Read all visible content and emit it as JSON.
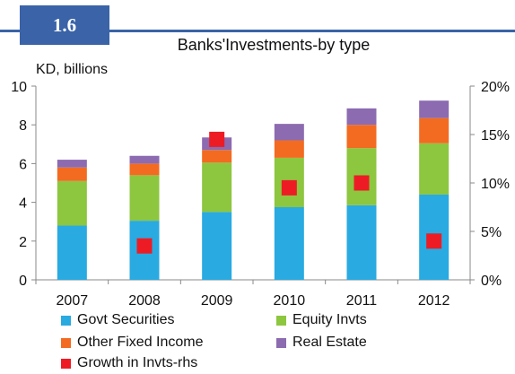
{
  "badge": "1.6",
  "chart_data": {
    "type": "bar",
    "stacked": true,
    "title": "Banks'Investments-by type",
    "ylabel": "KD, billions",
    "categories": [
      "2007",
      "2008",
      "2009",
      "2010",
      "2011",
      "2012"
    ],
    "ylim": [
      0,
      10
    ],
    "y_ticks": [
      "0",
      "2",
      "4",
      "6",
      "8",
      "10"
    ],
    "y2lim": [
      0,
      20
    ],
    "y2_ticks": [
      "0%",
      "5%",
      "10%",
      "15%",
      "20%"
    ],
    "series": [
      {
        "name": "Govt Securities",
        "color": "#29aae1",
        "values": [
          2.8,
          3.05,
          3.5,
          3.75,
          3.85,
          4.4
        ]
      },
      {
        "name": "Equity Invts",
        "color": "#8dc63f",
        "values": [
          2.3,
          2.35,
          2.55,
          2.55,
          2.95,
          2.65
        ]
      },
      {
        "name": "Other Fixed Income",
        "color": "#f26b21",
        "values": [
          0.7,
          0.6,
          0.65,
          0.9,
          1.2,
          1.3
        ]
      },
      {
        "name": "Real Estate",
        "color": "#8c6bb1",
        "values": [
          0.4,
          0.4,
          0.65,
          0.85,
          0.85,
          0.9
        ]
      }
    ],
    "growth": {
      "name": "Growth in Invts-rhs",
      "color": "#ed1c24",
      "values": [
        null,
        3.5,
        14.5,
        9.5,
        10,
        4
      ]
    },
    "legend_placement": "bottom",
    "grid": false
  }
}
